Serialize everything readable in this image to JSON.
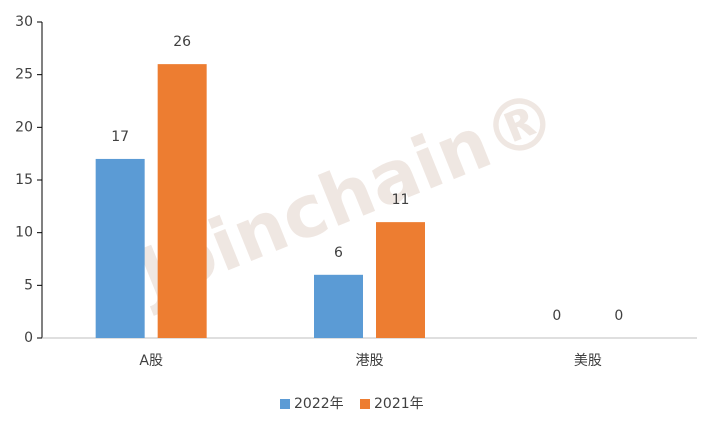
{
  "chart_data": {
    "type": "bar",
    "categories": [
      "A股",
      "港股",
      "美股"
    ],
    "series": [
      {
        "name": "2022年",
        "color": "#5b9bd5",
        "values": [
          17,
          6,
          0
        ]
      },
      {
        "name": "2021年",
        "color": "#ed7d31",
        "values": [
          26,
          11,
          0
        ]
      }
    ],
    "ylim": [
      0,
      30
    ],
    "yticks": [
      0,
      5,
      10,
      15,
      20,
      25,
      30
    ],
    "legend": "bottom",
    "watermark": "Joinchain®"
  }
}
